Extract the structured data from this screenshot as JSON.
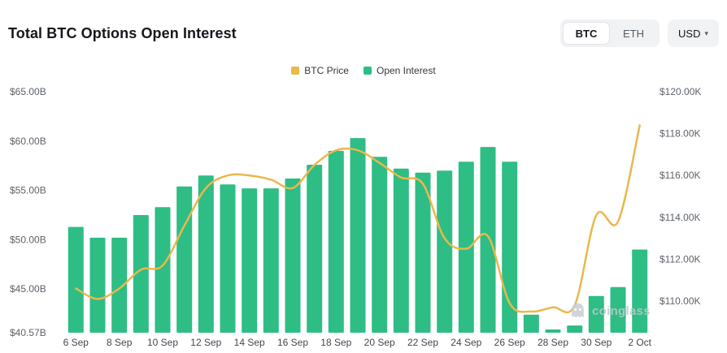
{
  "header": {
    "title": "Total BTC Options Open Interest",
    "coin_toggle": {
      "options": [
        "BTC",
        "ETH"
      ],
      "selected": "BTC"
    },
    "currency": "USD"
  },
  "legend": [
    {
      "label": "BTC Price",
      "color": "#E9B84C"
    },
    {
      "label": "Open Interest",
      "color": "#2EBD85"
    }
  ],
  "watermark": "coinglass",
  "chart_data": {
    "type": "bar",
    "title": "Total BTC Options Open Interest",
    "categories": [
      "6 Sep",
      "7 Sep",
      "8 Sep",
      "9 Sep",
      "10 Sep",
      "11 Sep",
      "12 Sep",
      "13 Sep",
      "14 Sep",
      "15 Sep",
      "16 Sep",
      "17 Sep",
      "18 Sep",
      "19 Sep",
      "20 Sep",
      "21 Sep",
      "22 Sep",
      "23 Sep",
      "24 Sep",
      "25 Sep",
      "26 Sep",
      "27 Sep",
      "28 Sep",
      "29 Sep",
      "30 Sep",
      "1 Oct",
      "2 Oct"
    ],
    "x_tick_labels": [
      "6 Sep",
      "8 Sep",
      "10 Sep",
      "12 Sep",
      "14 Sep",
      "16 Sep",
      "18 Sep",
      "20 Sep",
      "22 Sep",
      "24 Sep",
      "26 Sep",
      "28 Sep",
      "30 Sep",
      "2 Oct"
    ],
    "series": [
      {
        "name": "Open Interest",
        "type": "bar",
        "axis": "left",
        "unit": "$B",
        "color": "#2EBD85",
        "values": [
          51.3,
          50.2,
          50.2,
          52.5,
          53.3,
          55.4,
          56.5,
          55.6,
          55.2,
          55.2,
          56.2,
          57.6,
          59.0,
          60.3,
          58.4,
          57.2,
          56.8,
          57.0,
          57.9,
          59.4,
          57.9,
          42.4,
          40.9,
          41.3,
          44.3,
          45.2,
          49.0
        ]
      },
      {
        "name": "BTC Price",
        "type": "line",
        "axis": "right",
        "unit": "$K",
        "color": "#E9B84C",
        "values": [
          110.6,
          110.1,
          110.6,
          111.5,
          111.7,
          113.6,
          115.4,
          116.0,
          116.0,
          115.8,
          115.4,
          116.5,
          117.2,
          117.2,
          116.6,
          115.9,
          115.6,
          113.0,
          112.5,
          113.1,
          109.9,
          109.5,
          109.7,
          109.8,
          114.1,
          113.8,
          118.4
        ]
      }
    ],
    "left_axis": {
      "label": "Open Interest",
      "min": 40.57,
      "max": 65.0,
      "tick_values": [
        65.0,
        60.0,
        55.0,
        50.0,
        45.0,
        40.57
      ],
      "tick_labels": [
        "$65.00B",
        "$60.00B",
        "$55.00B",
        "$50.00B",
        "$45.00B",
        "$40.57B"
      ]
    },
    "right_axis": {
      "label": "BTC Price",
      "min": 110.0,
      "max": 120.0,
      "tick_values": [
        120.0,
        118.0,
        116.0,
        114.0,
        112.0,
        110.0
      ],
      "tick_labels": [
        "$120.00K",
        "$118.00K",
        "$116.00K",
        "$114.00K",
        "$112.00K",
        "$110.00K"
      ]
    },
    "grid": false,
    "legend_position": "top-center"
  }
}
